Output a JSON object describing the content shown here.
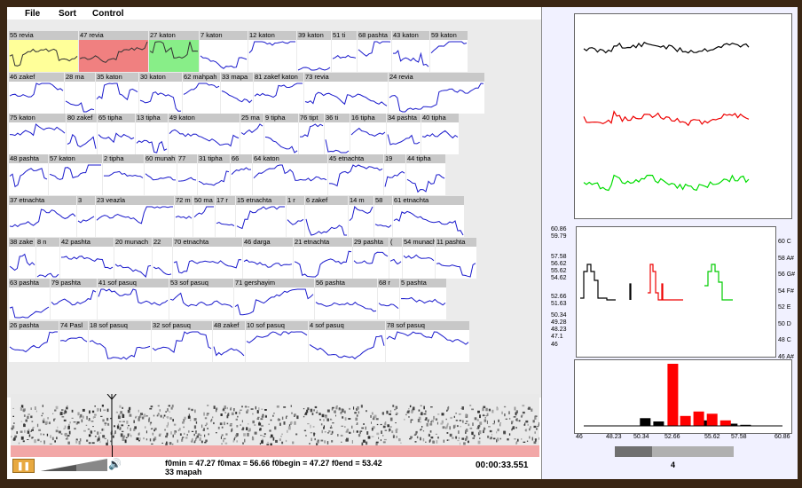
{
  "menu": {
    "file": "File",
    "sort": "Sort",
    "control": "Control"
  },
  "colors": {
    "wave": "#1a1acc",
    "spec_note": "hinted cantillation contours",
    "highlight_yellow": "#ffff99",
    "highlight_red": "#f08080",
    "highlight_green": "#88ee88",
    "pink_bar": "#f2a7a7",
    "accent_play": "#e8a940"
  },
  "rows": [
    [
      {
        "label": "55 revia",
        "w": 78,
        "color": "yellow"
      },
      {
        "label": "47 revia",
        "w": 78,
        "color": "red"
      },
      {
        "label": "27 katon",
        "w": 56,
        "color": "green"
      },
      {
        "label": "7 katon",
        "w": 54
      },
      {
        "label": "12 katon",
        "w": 54
      },
      {
        "label": "39 katon",
        "w": 38
      },
      {
        "label": "51 ti",
        "w": 28
      },
      {
        "label": "68 pashta",
        "w": 38
      },
      {
        "label": "43 katon",
        "w": 42
      },
      {
        "label": "59 katon",
        "w": 42
      }
    ],
    [
      {
        "label": "46 zakef",
        "w": 62
      },
      {
        "label": "28 ma",
        "w": 34
      },
      {
        "label": "35 katon",
        "w": 48
      },
      {
        "label": "30 katon",
        "w": 48
      },
      {
        "label": "62 mahpah",
        "w": 42
      },
      {
        "label": "33 mapa",
        "w": 36
      },
      {
        "label": "81 zakef katon",
        "w": 56
      },
      {
        "label": "73 revia",
        "w": 94
      },
      {
        "label": "24 revia",
        "w": 108
      }
    ],
    [
      {
        "label": "75 katon",
        "w": 64
      },
      {
        "label": "80 zakef",
        "w": 34
      },
      {
        "label": "65 tipha",
        "w": 42
      },
      {
        "label": "13 tipha",
        "w": 36
      },
      {
        "label": "49 katon",
        "w": 80
      },
      {
        "label": "25 ma",
        "w": 26
      },
      {
        "label": "9 tipha",
        "w": 38
      },
      {
        "label": "76 tipt",
        "w": 28
      },
      {
        "label": "36 ti",
        "w": 28
      },
      {
        "label": "16 tipha",
        "w": 40
      },
      {
        "label": "34 pashta",
        "w": 38
      },
      {
        "label": "40 tipha",
        "w": 42
      }
    ],
    [
      {
        "label": "48 pashta",
        "w": 44
      },
      {
        "label": "57 katon",
        "w": 60
      },
      {
        "label": "2 tipha",
        "w": 46
      },
      {
        "label": "60 munah",
        "w": 36
      },
      {
        "label": "77",
        "w": 22
      },
      {
        "label": "31 tipha",
        "w": 36
      },
      {
        "label": "66",
        "w": 24
      },
      {
        "label": "64 katon",
        "w": 84
      },
      {
        "label": "45 etnachta",
        "w": 62
      },
      {
        "label": "19",
        "w": 24
      },
      {
        "label": "44 tipha",
        "w": 44
      }
    ],
    [
      {
        "label": "37 etnachta",
        "w": 76
      },
      {
        "label": "3",
        "w": 20
      },
      {
        "label": "23 veazla",
        "w": 88
      },
      {
        "label": "72 m",
        "w": 20
      },
      {
        "label": "50 ma",
        "w": 24
      },
      {
        "label": "17 r",
        "w": 22
      },
      {
        "label": "15 etnachta",
        "w": 56
      },
      {
        "label": "1 r",
        "w": 20
      },
      {
        "label": "6 zakef",
        "w": 48
      },
      {
        "label": "14 m",
        "w": 28
      },
      {
        "label": "58",
        "w": 20
      },
      {
        "label": "61 etnachta",
        "w": 80
      }
    ],
    [
      {
        "label": "38 zake",
        "w": 30
      },
      {
        "label": "8 n",
        "w": 26
      },
      {
        "label": "42 pashta",
        "w": 60
      },
      {
        "label": "20 munach",
        "w": 42
      },
      {
        "label": "22",
        "w": 22
      },
      {
        "label": "70 etnachta",
        "w": 78
      },
      {
        "label": "46 darga",
        "w": 56
      },
      {
        "label": "21 etnachta",
        "w": 66
      },
      {
        "label": "29 pashta",
        "w": 40
      },
      {
        "label": "(",
        "w": 14
      },
      {
        "label": "54 munach",
        "w": 36
      },
      {
        "label": "11 pashta",
        "w": 46
      }
    ],
    [
      {
        "label": "63 pashta",
        "w": 46
      },
      {
        "label": "79 pashta",
        "w": 52
      },
      {
        "label": "41 sof pasuq",
        "w": 80
      },
      {
        "label": "53 sof pasuq",
        "w": 72
      },
      {
        "label": "71 gershayim",
        "w": 90
      },
      {
        "label": "56 pashta",
        "w": 70
      },
      {
        "label": "68 r",
        "w": 24
      },
      {
        "label": "5 pashta",
        "w": 52
      }
    ],
    [
      {
        "label": "26 pashta",
        "w": 56
      },
      {
        "label": "74 Pasl",
        "w": 32
      },
      {
        "label": "18 sof pasuq",
        "w": 70
      },
      {
        "label": "32 sof pasuq",
        "w": 68
      },
      {
        "label": "48 zakef",
        "w": 36
      },
      {
        "label": "10 sof pasuq",
        "w": 70
      },
      {
        "label": "4 sof pasuq",
        "w": 86
      },
      {
        "label": "78 sof pasuq",
        "w": 94
      }
    ]
  ],
  "status": {
    "f0_line": "f0min = 47.27  f0max = 56.66  f0begin = 47.27 f0end = 53.42",
    "word": "33 mapah",
    "time": "00:00:33.551",
    "play_icon": "pause-icon",
    "slider_value": "4",
    "slider_fraction": 0.31
  },
  "pitch_axis": {
    "left_ticks": [
      "60.86",
      "59.79",
      "57.58",
      "56.62",
      "55.62",
      "54.62",
      "52.66",
      "51.63",
      "50.34",
      "49.28",
      "48.23",
      "47.1",
      "46"
    ],
    "right_ticks": [
      "60 C",
      "58 A#",
      "56 G#",
      "54 F#",
      "52 E",
      "50 D",
      "48 C",
      "46 A#"
    ]
  },
  "chart_data": {
    "type": "bar",
    "categories": [
      "46",
      "48.23",
      "50.34",
      "52.66",
      "55.62",
      "57.58",
      "60.86"
    ],
    "x_range": [
      46,
      60.86
    ],
    "series": [
      {
        "color": "black",
        "values": [
          {
            "x": 50.6,
            "y": 7
          },
          {
            "x": 51.6,
            "y": 4
          },
          {
            "x": 55.3,
            "y": 5
          },
          {
            "x": 57.1,
            "y": 2
          },
          {
            "x": 58.1,
            "y": 1
          }
        ]
      },
      {
        "color": "red",
        "values": [
          {
            "x": 52.66,
            "y": 56
          },
          {
            "x": 53.6,
            "y": 9
          },
          {
            "x": 54.6,
            "y": 13
          },
          {
            "x": 55.6,
            "y": 11
          },
          {
            "x": 56.6,
            "y": 5
          }
        ]
      }
    ],
    "ylim": [
      0,
      56
    ],
    "grid": false
  }
}
